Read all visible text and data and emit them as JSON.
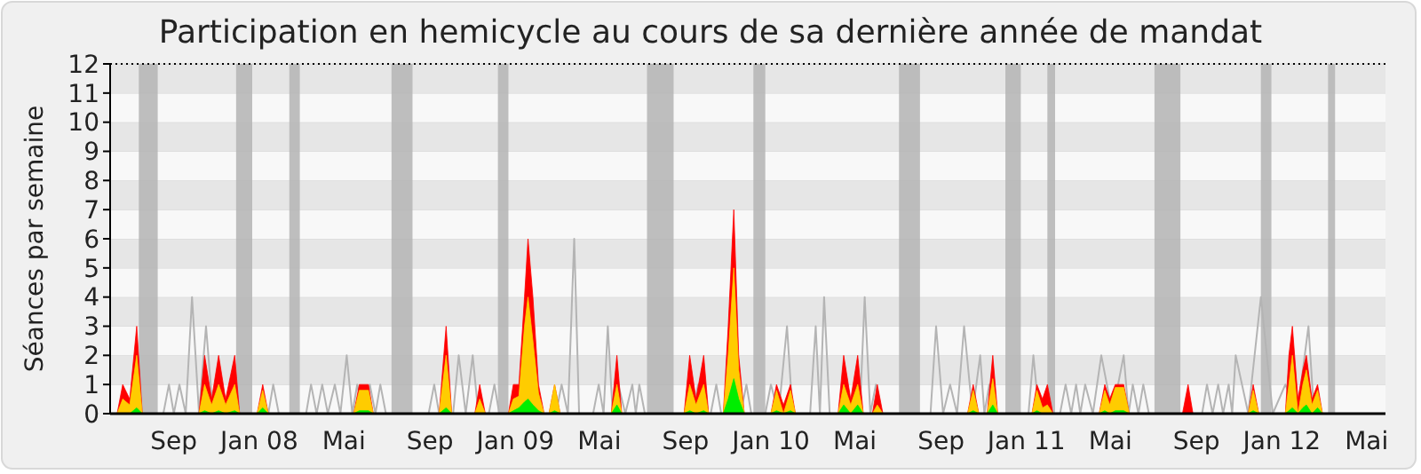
{
  "chart_data": {
    "type": "area",
    "title": "Participation en hemicycle au cours de sa dernière année de mandat",
    "ylabel": "Séances par semaine",
    "xlim": [
      "2007-06-02",
      "2012-05-28"
    ],
    "xticks": [
      {
        "value": "2007-09-01",
        "label": "Sep"
      },
      {
        "value": "2008-01-01",
        "label": "Jan 08"
      },
      {
        "value": "2008-05-01",
        "label": "Mai"
      },
      {
        "value": "2008-09-01",
        "label": "Sep"
      },
      {
        "value": "2009-01-01",
        "label": "Jan 09"
      },
      {
        "value": "2009-05-01",
        "label": "Mai"
      },
      {
        "value": "2009-09-01",
        "label": "Sep"
      },
      {
        "value": "2010-01-01",
        "label": "Jan 10"
      },
      {
        "value": "2010-05-01",
        "label": "Mai"
      },
      {
        "value": "2010-09-01",
        "label": "Sep"
      },
      {
        "value": "2011-01-01",
        "label": "Jan 11"
      },
      {
        "value": "2011-05-01",
        "label": "Mai"
      },
      {
        "value": "2011-09-01",
        "label": "Sep"
      },
      {
        "value": "2012-01-01",
        "label": "Jan 12"
      },
      {
        "value": "2012-05-01",
        "label": "Mai"
      }
    ],
    "ylim": [
      0,
      12
    ],
    "yticks": [
      0,
      1,
      2,
      3,
      4,
      5,
      6,
      7,
      8,
      9,
      10,
      11,
      12
    ],
    "grid": true,
    "bands": [
      {
        "axis": "x",
        "from": "2007-07-13",
        "to": "2007-08-09",
        "color": "#b4b4b4"
      },
      {
        "axis": "x",
        "from": "2007-11-29",
        "to": "2007-12-22",
        "color": "#b4b4b4"
      },
      {
        "axis": "x",
        "from": "2008-02-13",
        "to": "2008-02-28",
        "color": "#b4b4b4"
      },
      {
        "axis": "x",
        "from": "2008-07-08",
        "to": "2008-08-07",
        "color": "#b4b4b4"
      },
      {
        "axis": "x",
        "from": "2008-12-07",
        "to": "2008-12-22",
        "color": "#b4b4b4"
      },
      {
        "axis": "x",
        "from": "2009-07-08",
        "to": "2009-08-15",
        "color": "#b4b4b4"
      },
      {
        "axis": "x",
        "from": "2009-12-07",
        "to": "2009-12-24",
        "color": "#b4b4b4"
      },
      {
        "axis": "x",
        "from": "2010-07-03",
        "to": "2010-08-02",
        "color": "#b4b4b4"
      },
      {
        "axis": "x",
        "from": "2010-12-02",
        "to": "2010-12-24",
        "color": "#b4b4b4"
      },
      {
        "axis": "x",
        "from": "2011-01-31",
        "to": "2011-02-11",
        "color": "#b4b4b4"
      },
      {
        "axis": "x",
        "from": "2011-07-03",
        "to": "2011-08-09",
        "color": "#b4b4b4"
      },
      {
        "axis": "x",
        "from": "2011-12-02",
        "to": "2011-12-17",
        "color": "#b4b4b4"
      },
      {
        "axis": "x",
        "from": "2012-03-07",
        "to": "2012-03-17",
        "color": "#b4b4b4"
      }
    ],
    "x": [
      "2007-06-12",
      "2007-06-20",
      "2007-06-30",
      "2007-07-10",
      "2007-07-18",
      "2007-10-07",
      "2007-10-15",
      "2007-10-25",
      "2007-11-04",
      "2007-11-14",
      "2007-11-27",
      "2007-12-04",
      "2007-12-29",
      "2008-01-06",
      "2008-01-14",
      "2008-05-15",
      "2008-05-23",
      "2008-06-05",
      "2008-06-12",
      "2008-09-14",
      "2008-09-24",
      "2008-10-02",
      "2008-11-04",
      "2008-11-11",
      "2008-11-19",
      "2008-12-22",
      "2008-12-29",
      "2009-01-06",
      "2009-01-14",
      "2009-01-19",
      "2009-01-26",
      "2009-02-03",
      "2009-02-11",
      "2009-02-18",
      "2009-02-26",
      "2009-03-06",
      "2009-05-18",
      "2009-05-26",
      "2009-06-02",
      "2009-08-30",
      "2009-09-07",
      "2009-09-16",
      "2009-09-27",
      "2009-10-04",
      "2009-10-25",
      "2009-11-01",
      "2009-11-09",
      "2009-11-16",
      "2009-11-24",
      "2010-01-01",
      "2010-01-09",
      "2010-01-19",
      "2010-01-29",
      "2010-02-05",
      "2010-04-07",
      "2010-04-15",
      "2010-04-25",
      "2010-05-05",
      "2010-05-13",
      "2010-05-26",
      "2010-06-02",
      "2010-06-10",
      "2010-10-09",
      "2010-10-17",
      "2010-10-25",
      "2010-11-06",
      "2010-11-14",
      "2010-11-21",
      "2011-01-09",
      "2011-01-16",
      "2011-01-24",
      "2011-01-31",
      "2011-02-08",
      "2011-04-15",
      "2011-04-23",
      "2011-04-30",
      "2011-05-08",
      "2011-05-20",
      "2011-05-28",
      "2011-08-12",
      "2011-08-20",
      "2011-08-27",
      "2011-11-14",
      "2011-11-21",
      "2011-11-29",
      "2012-01-06",
      "2012-01-11",
      "2012-01-16",
      "2012-01-24",
      "2012-01-31",
      "2012-02-05",
      "2012-02-13",
      "2012-02-21",
      "2012-02-28"
    ],
    "series": [
      {
        "type": "line",
        "color": "#b4b4b4",
        "x": [
          "2007-08-17",
          "2007-08-25",
          "2007-09-01",
          "2007-09-09",
          "2007-09-18",
          "2007-09-27",
          "2007-10-07",
          "2007-10-17",
          "2007-10-27",
          "2007-11-06",
          "2007-11-14",
          "2008-01-14",
          "2008-01-21",
          "2008-01-29",
          "2008-03-08",
          "2008-03-15",
          "2008-03-23",
          "2008-03-31",
          "2008-04-08",
          "2008-04-18",
          "2008-04-26",
          "2008-05-05",
          "2008-05-13",
          "2008-05-20",
          "2008-05-29",
          "2008-06-07",
          "2008-06-15",
          "2008-06-22",
          "2008-06-30",
          "2008-08-30",
          "2008-09-07",
          "2008-09-14",
          "2008-10-04",
          "2008-10-12",
          "2008-10-22",
          "2008-11-01",
          "2008-11-09",
          "2008-11-24",
          "2008-12-02",
          "2008-12-09",
          "2009-02-28",
          "2009-03-08",
          "2009-03-17",
          "2009-03-26",
          "2009-04-02",
          "2009-04-22",
          "2009-04-30",
          "2009-05-07",
          "2009-05-13",
          "2009-05-20",
          "2009-05-28",
          "2009-06-07",
          "2009-06-17",
          "2009-06-22",
          "2009-06-27",
          "2009-07-05",
          "2009-09-11",
          "2009-09-19",
          "2009-09-24",
          "2009-09-29",
          "2009-10-07",
          "2009-10-15",
          "2009-10-22",
          "2009-11-19",
          "2009-11-27",
          "2009-12-04",
          "2009-12-24",
          "2010-01-01",
          "2010-01-12",
          "2010-01-24",
          "2010-02-01",
          "2010-02-26",
          "2010-03-06",
          "2010-03-12",
          "2010-03-18",
          "2010-03-26",
          "2010-05-08",
          "2010-05-15",
          "2010-05-23",
          "2010-05-31",
          "2010-06-07",
          "2010-08-17",
          "2010-08-25",
          "2010-09-04",
          "2010-09-14",
          "2010-09-24",
          "2010-10-04",
          "2010-10-16",
          "2010-10-27",
          "2010-11-02",
          "2010-11-09",
          "2010-11-16",
          "2011-01-04",
          "2011-01-11",
          "2011-01-19",
          "2011-02-18",
          "2011-02-26",
          "2011-03-06",
          "2011-03-13",
          "2011-03-19",
          "2011-03-26",
          "2011-04-06",
          "2011-04-18",
          "2011-05-04",
          "2011-05-20",
          "2011-05-27",
          "2011-06-02",
          "2011-06-10",
          "2011-06-17",
          "2011-06-25",
          "2011-09-09",
          "2011-09-16",
          "2011-09-24",
          "2011-10-02",
          "2011-10-09",
          "2011-10-17",
          "2011-10-22",
          "2011-10-27",
          "2011-11-14",
          "2011-12-02",
          "2011-12-19",
          "2012-01-06",
          "2012-01-23",
          "2012-02-08",
          "2012-02-16"
        ],
        "values": [
          0,
          1,
          0,
          1,
          0,
          4,
          0,
          3,
          0,
          null,
          0,
          0,
          1,
          0,
          0,
          1,
          0,
          1,
          0,
          1,
          0,
          2,
          0,
          1,
          0,
          1,
          0,
          1,
          0,
          0,
          1,
          0,
          0,
          2,
          0,
          2,
          0,
          0,
          1,
          0,
          0,
          1,
          0,
          6,
          0,
          0,
          1,
          0,
          3,
          0,
          1,
          0,
          1,
          0,
          1,
          0,
          0,
          1,
          0,
          null,
          0,
          1,
          0,
          0,
          1,
          0,
          0,
          1,
          0,
          3,
          0,
          0,
          3,
          0,
          4,
          0,
          0,
          4,
          0,
          1,
          0,
          0,
          3,
          0,
          1,
          0,
          3,
          0,
          2,
          0,
          1,
          0,
          0,
          2,
          0,
          0,
          1,
          0,
          1,
          0,
          1,
          0,
          2,
          0,
          2,
          0,
          1,
          0,
          1,
          0,
          0,
          1,
          0,
          1,
          0,
          1,
          0,
          2,
          0,
          4,
          0,
          1,
          0,
          3,
          0
        ]
      },
      {
        "color": "#ff0000",
        "values": [
          0,
          1,
          0.5,
          3,
          0,
          0,
          2,
          0.5,
          2,
          0.5,
          2,
          0,
          0,
          1,
          0,
          0,
          1,
          1,
          0,
          0,
          3,
          0,
          0,
          1,
          0,
          0,
          1,
          1,
          4,
          6,
          4,
          1,
          0,
          0,
          1,
          0,
          0,
          2,
          0,
          0,
          2,
          0.5,
          2,
          0,
          0,
          3,
          7,
          2,
          0,
          0,
          1,
          0.3,
          1,
          0,
          0,
          2,
          0.5,
          2,
          0,
          0,
          1,
          0,
          0,
          1,
          0,
          0,
          2,
          0,
          0,
          1,
          0.5,
          1,
          0,
          0,
          1,
          0.5,
          1,
          1,
          0,
          0,
          1,
          0,
          0,
          1,
          0,
          0,
          2,
          3,
          0.5,
          1.5,
          2,
          0.5,
          1,
          0
        ]
      },
      {
        "color": "#ffcc00",
        "values": [
          0,
          0.5,
          0.3,
          2,
          0,
          0,
          1,
          0.3,
          1,
          0.3,
          1,
          0,
          0,
          0.8,
          0,
          0,
          0.8,
          0.8,
          0,
          0,
          2,
          0,
          0,
          0.5,
          0,
          0,
          0.5,
          0.6,
          3,
          4,
          2.5,
          0.7,
          0,
          0,
          1,
          0,
          0,
          1,
          0,
          0,
          1,
          0.3,
          1,
          0,
          0,
          2,
          5,
          1.5,
          0,
          0,
          0.8,
          0,
          0.8,
          0,
          0,
          1,
          0.3,
          1,
          0,
          0,
          0.3,
          0,
          0,
          0.8,
          0,
          0,
          1.2,
          0,
          0,
          0.8,
          0.2,
          0.3,
          0,
          0,
          0.8,
          0.3,
          0.9,
          0.9,
          0,
          0,
          0,
          0,
          0,
          0.8,
          0,
          0,
          1,
          2,
          0,
          1,
          1.5,
          0.3,
          0.8,
          0
        ]
      },
      {
        "color": "#00ee00",
        "values": [
          0,
          0,
          0,
          0.2,
          0,
          0,
          0.1,
          0,
          0.1,
          0,
          0.1,
          0,
          0,
          0.2,
          0,
          0,
          0.1,
          0.1,
          0,
          0,
          0.2,
          0,
          0,
          0,
          0,
          0,
          0.1,
          0.2,
          0.4,
          0.5,
          0.3,
          0.1,
          0,
          0,
          0.1,
          0,
          0,
          0.3,
          0,
          0,
          0.1,
          0,
          0.1,
          0,
          0,
          0.5,
          1.2,
          0.5,
          0,
          0,
          0.1,
          0,
          0.1,
          0,
          0,
          0.3,
          0,
          0.3,
          0,
          0,
          0,
          0,
          0,
          0.1,
          0,
          0,
          0.3,
          0,
          0,
          0.1,
          0,
          0,
          0,
          0,
          0.1,
          0,
          0.1,
          0.1,
          0,
          0,
          0,
          0,
          0,
          0.1,
          0,
          0,
          0.1,
          0.2,
          0,
          0.2,
          0.3,
          0,
          0.2,
          0
        ]
      }
    ]
  }
}
